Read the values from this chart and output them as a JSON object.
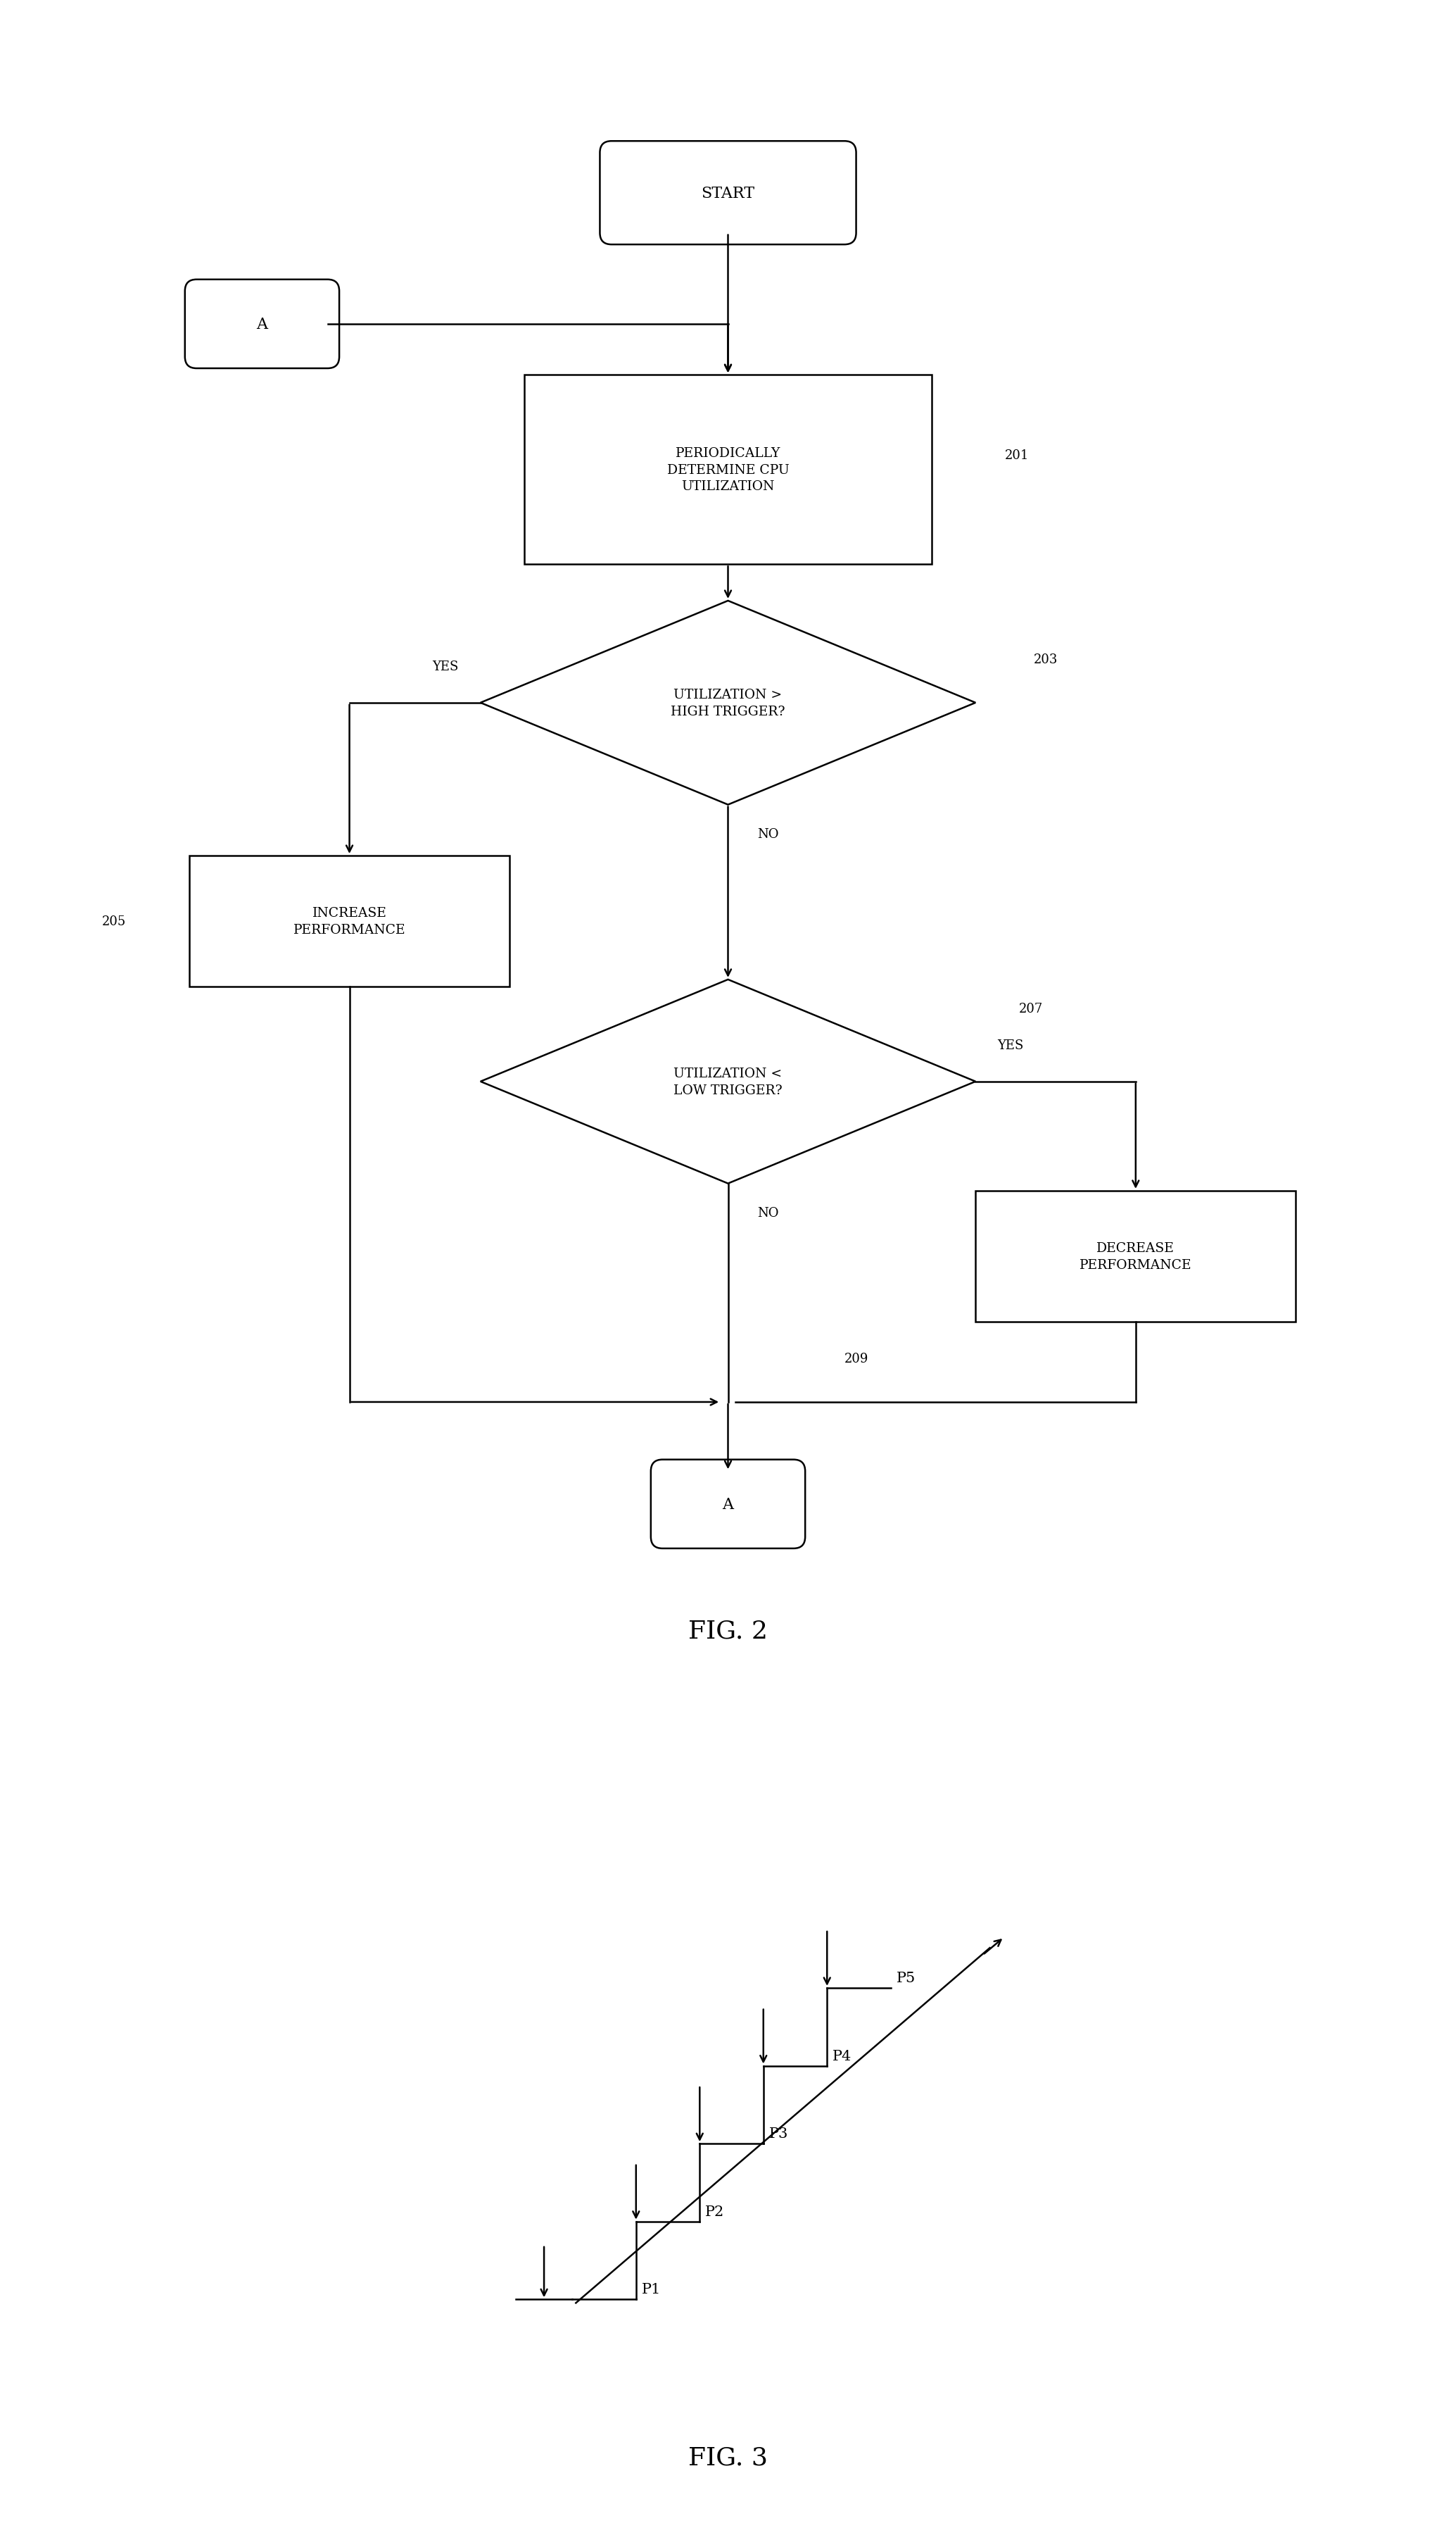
{
  "background_color": "#ffffff",
  "fig_width": 20.69,
  "fig_height": 35.91,
  "fig2_title": "FIG. 2",
  "fig3_title": "FIG. 3",
  "flowchart": {
    "start_text": "START",
    "connector_a_text": "A",
    "box201_text": "PERIODICALLY\nDETERMINE CPU\nUTILIZATION",
    "box201_label": "201",
    "diamond203_text": "UTILIZATION >\nHIGH TRIGGER?",
    "diamond203_label": "203",
    "box205_text": "INCREASE\nPERFORMANCE",
    "box205_label": "205",
    "diamond207_text": "UTILIZATION <\nLOW TRIGGER?",
    "diamond207_label": "207",
    "box_decrease_text": "DECREASE\nPERFORMANCE",
    "node209_label": "209",
    "connector_a2_text": "A",
    "yes_label": "YES",
    "no_label": "NO"
  },
  "staircase": {
    "labels": [
      "P1",
      "P2",
      "P3",
      "P4",
      "P5"
    ]
  }
}
